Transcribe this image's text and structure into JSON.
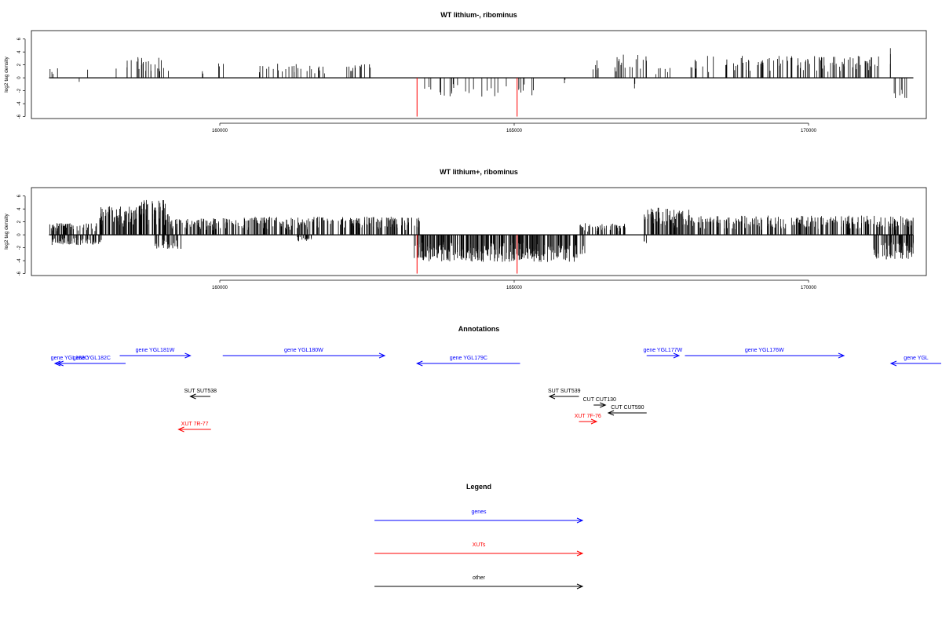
{
  "colors": {
    "gene": "#0000ff",
    "xut": "#ff0000",
    "other": "#000000",
    "marker": "#ff0000",
    "axis": "#000000",
    "bar": "#000000"
  },
  "chart_data": [
    {
      "type": "bar",
      "title": "WT lithium-, ribominus",
      "ylabel": "log2 tag density",
      "xlim": [
        156800,
        172000
      ],
      "ylim": [
        -6.3,
        7.3
      ],
      "yticks": [
        -6,
        -4,
        -2,
        0,
        2,
        4,
        6
      ],
      "xticks": [
        160000,
        165000,
        170000
      ],
      "data_start": 157100,
      "data_end": 171780,
      "markers": [
        163350,
        165050
      ],
      "series": [
        {
          "name": "+",
          "seed": 11,
          "dense": 0.012,
          "regions": [
            [
              157100,
              157300,
              1.6
            ],
            [
              157750,
              157800,
              2.5
            ],
            [
              158200,
              158250,
              2.6
            ],
            [
              158400,
              159150,
              3.2
            ],
            [
              159700,
              159800,
              1.4
            ],
            [
              159950,
              160100,
              3.0
            ],
            [
              160600,
              161800,
              2.2
            ],
            [
              162000,
              162600,
              2.4
            ],
            [
              166300,
              166450,
              3.4
            ],
            [
              166700,
              167250,
              3.6
            ],
            [
              167400,
              167650,
              1.8
            ],
            [
              168000,
              171200,
              3.4
            ],
            [
              171350,
              171450,
              4.6
            ]
          ]
        },
        {
          "name": "-",
          "seed": 23,
          "dense": 0.0,
          "regions": [
            [
              157600,
              157650,
              -1.0
            ],
            [
              163420,
              163650,
              -2.0
            ],
            [
              163650,
              164900,
              -3.0
            ],
            [
              165050,
              165500,
              -2.8
            ],
            [
              165850,
              165950,
              -1.0
            ],
            [
              166950,
              167050,
              -2.5
            ],
            [
              171450,
              171780,
              -3.2
            ]
          ]
        }
      ]
    },
    {
      "type": "bar",
      "title": "WT lithium+, ribominus",
      "ylabel": "log2 tag density",
      "xlim": [
        156800,
        172000
      ],
      "ylim": [
        -6.3,
        7.3
      ],
      "yticks": [
        -6,
        -4,
        -2,
        0,
        2,
        4,
        6
      ],
      "xticks": [
        160000,
        165000,
        170000
      ],
      "data_start": 157100,
      "data_end": 171780,
      "markers": [
        163350,
        165050
      ],
      "series": [
        {
          "name": "+",
          "seed": 37,
          "dense": 0.09,
          "regions": [
            [
              157100,
              157950,
              1.8
            ],
            [
              157950,
              158600,
              4.4
            ],
            [
              158600,
              159150,
              5.4
            ],
            [
              159150,
              160300,
              2.6
            ],
            [
              160300,
              163400,
              2.8
            ],
            [
              166100,
              166900,
              1.8
            ],
            [
              167200,
              168000,
              4.2
            ],
            [
              168000,
              171780,
              3.0
            ]
          ]
        },
        {
          "name": "-",
          "seed": 59,
          "dense": 0.09,
          "regions": [
            [
              157150,
              158000,
              -1.6
            ],
            [
              158900,
              159350,
              -2.2
            ],
            [
              161300,
              161600,
              -1.0
            ],
            [
              163300,
              166200,
              -4.2
            ],
            [
              167200,
              167250,
              -1.6
            ],
            [
              171100,
              171780,
              -3.8
            ]
          ]
        }
      ]
    }
  ],
  "annotations_title": "Annotations",
  "annotations": [
    {
      "label": "gene YGL183C",
      "start": 157200,
      "end": 157700,
      "strand": "-",
      "row": 1,
      "color": "gene"
    },
    {
      "label": "gene YGL182C",
      "start": 157250,
      "end": 158400,
      "strand": "-",
      "row": 1,
      "color": "gene"
    },
    {
      "label": "gene YGL181W",
      "start": 158300,
      "end": 159500,
      "strand": "+",
      "row": 0,
      "color": "gene"
    },
    {
      "label": "gene YGL180W",
      "start": 160050,
      "end": 162800,
      "strand": "+",
      "row": 0,
      "color": "gene"
    },
    {
      "label": "gene YGL179C",
      "start": 163350,
      "end": 165100,
      "strand": "-",
      "row": 1,
      "color": "gene"
    },
    {
      "label": "gene YGL177W",
      "start": 167250,
      "end": 167800,
      "strand": "+",
      "row": 0,
      "color": "gene"
    },
    {
      "label": "gene YGL176W",
      "start": 167900,
      "end": 170600,
      "strand": "+",
      "row": 0,
      "color": "gene"
    },
    {
      "label": "gene YGL",
      "start": 171400,
      "end": 172500,
      "strand": "-",
      "row": 1,
      "color": "gene"
    },
    {
      "label": "SUT SUT538",
      "start": 159500,
      "end": 159840,
      "strand": "-",
      "row": 2,
      "color": "other"
    },
    {
      "label": "SUT SUT539",
      "start": 165600,
      "end": 166100,
      "strand": "-",
      "row": 2,
      "color": "other"
    },
    {
      "label": "CUT CUT130",
      "start": 166350,
      "end": 166550,
      "strand": "+",
      "row": 3,
      "color": "other"
    },
    {
      "label": "CUT CUT590",
      "start": 166600,
      "end": 167250,
      "strand": "-",
      "row": 4,
      "color": "other"
    },
    {
      "label": "XUT 7R-77",
      "start": 159300,
      "end": 159850,
      "strand": "-",
      "row": 6,
      "color": "xut"
    },
    {
      "label": "XUT 7F-76",
      "start": 166100,
      "end": 166400,
      "strand": "+",
      "row": 5,
      "color": "xut"
    }
  ],
  "legend_title": "Legend",
  "legend": [
    {
      "label": "genes",
      "color": "gene"
    },
    {
      "label": "XUTs",
      "color": "xut"
    },
    {
      "label": "other",
      "color": "other"
    }
  ]
}
